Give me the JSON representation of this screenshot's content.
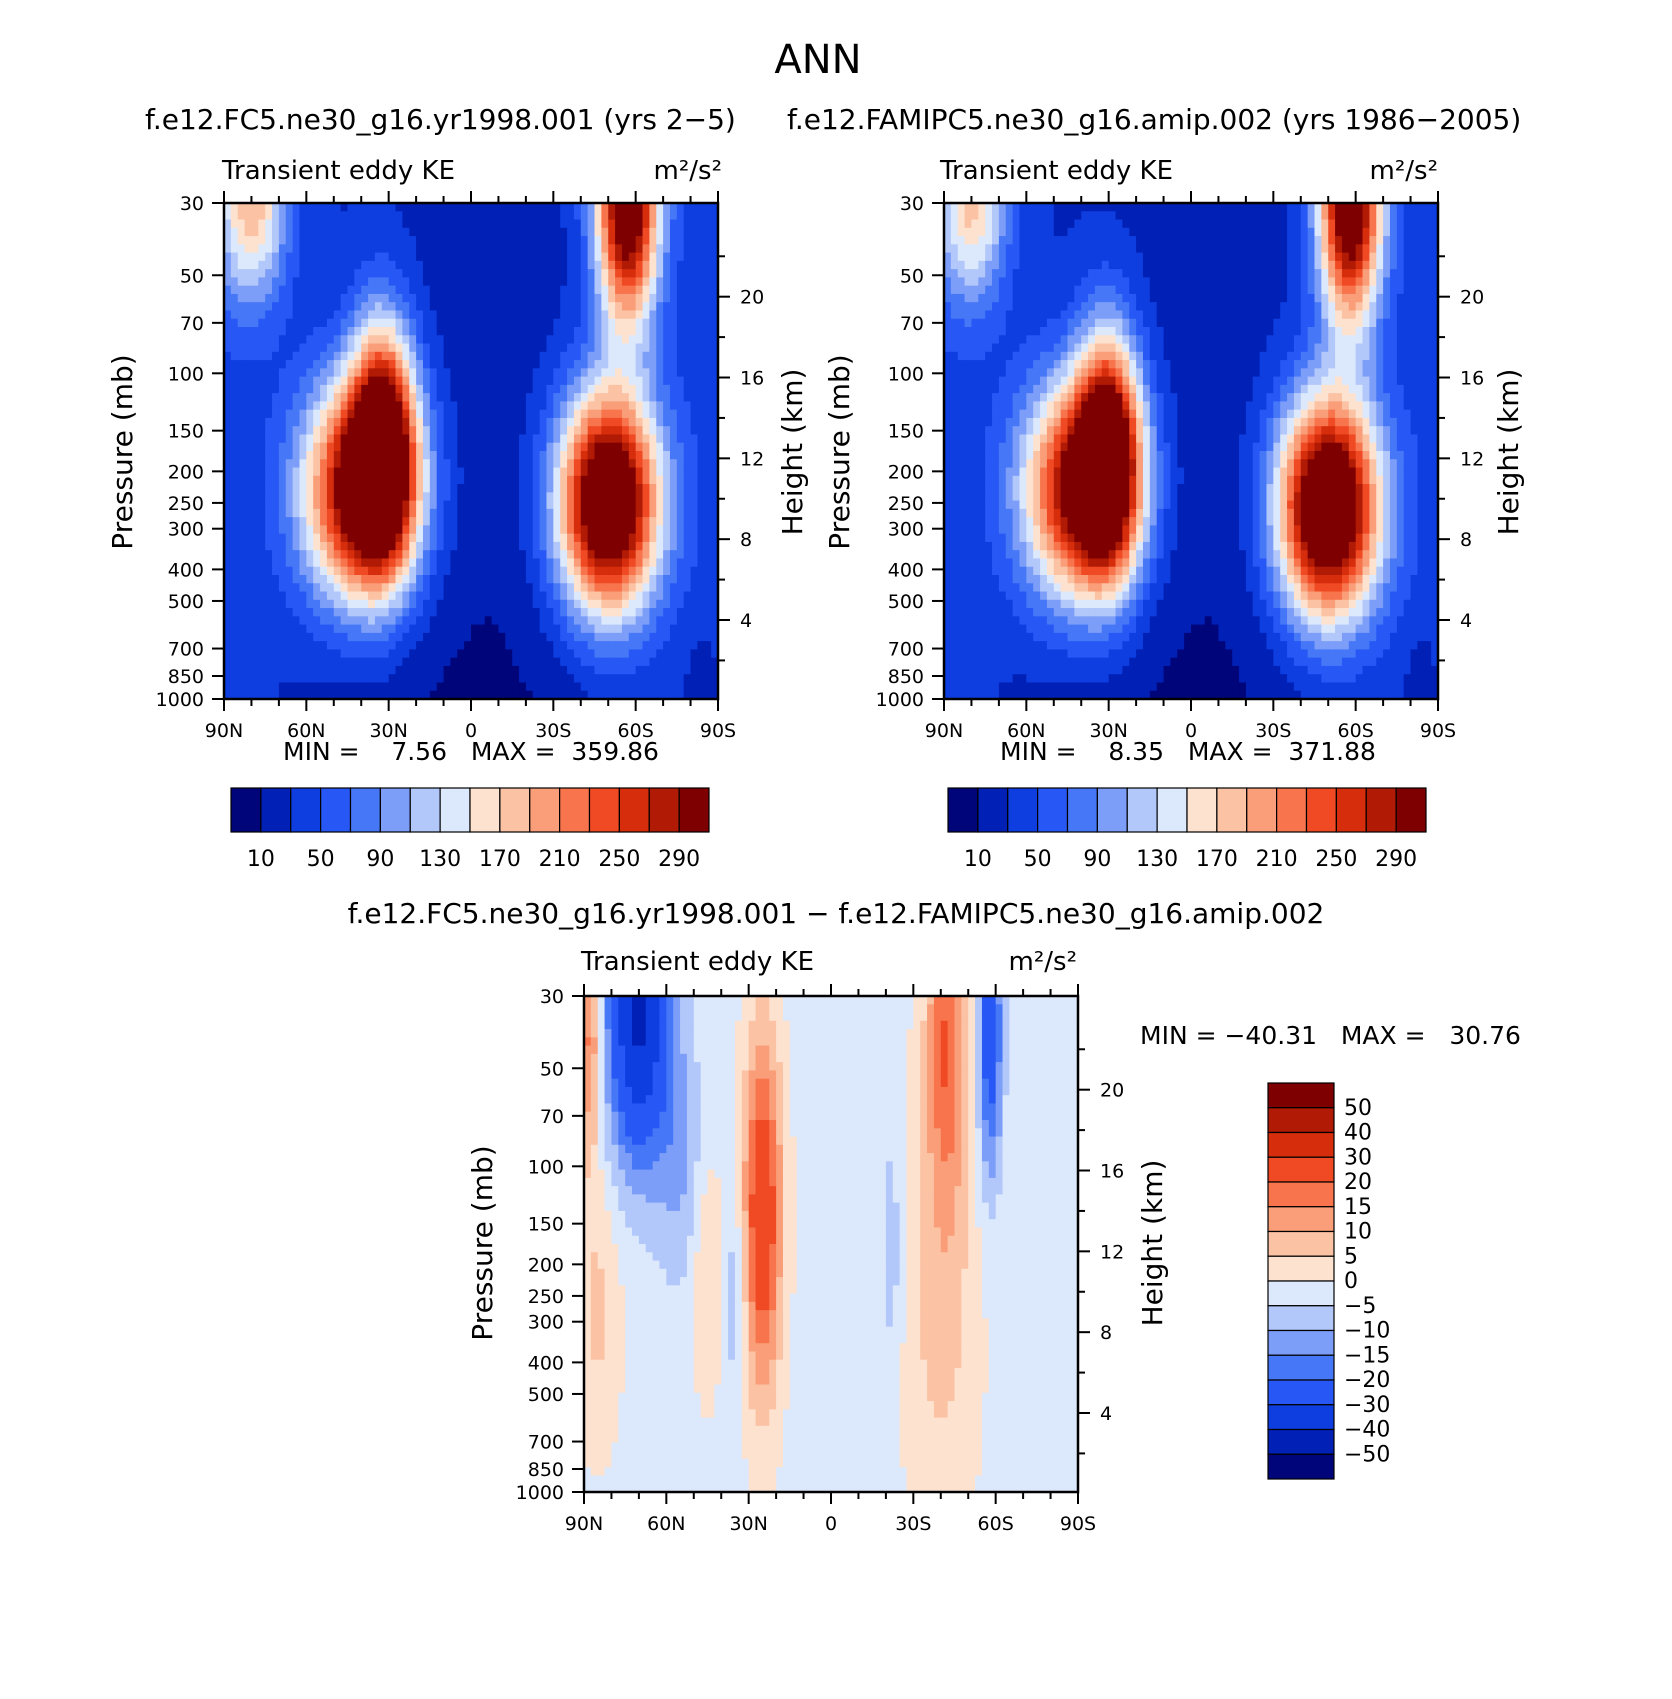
{
  "figure": {
    "title": "ANN",
    "panel_units": "m²/s²",
    "panel_variable": "Transient eddy KE"
  },
  "chart_data": [
    {
      "id": "test",
      "type": "heatmap",
      "title": "f.e12.FC5.ne30_g16.yr1998.001 (yrs 2−5)",
      "left_string": "Transient eddy KE",
      "right_string": "m²/s²",
      "ylabel": "Pressure (mb)",
      "ylabel_right": "Height (km)",
      "x_ticks": [
        "90N",
        "60N",
        "30N",
        "0",
        "30S",
        "60S",
        "90S"
      ],
      "y_ticks": [
        "30",
        "50",
        "70",
        "100",
        "150",
        "200",
        "250",
        "300",
        "400",
        "500",
        "700",
        "850",
        "1000"
      ],
      "y_ticks_right": [
        "20",
        "16",
        "12",
        "8",
        "4"
      ],
      "min": 7.56,
      "max": 359.86,
      "stats_text": "MIN =    7.56   MAX =  359.86",
      "colorbar_labels": [
        "10",
        "50",
        "90",
        "130",
        "170",
        "210",
        "250",
        "290"
      ],
      "colorbar_colors": [
        "#00057a",
        "#0120b6",
        "#0e3ee0",
        "#2758f6",
        "#4677f7",
        "#7d9ef8",
        "#b2c7fa",
        "#dce8fb",
        "#fde2cf",
        "#fbc2a4",
        "#f99e78",
        "#f7744d",
        "#ef4a24",
        "#d62d0c",
        "#b11a05",
        "#7f0000"
      ],
      "field": {
        "background": 40,
        "base_height_range": [
          6,
          40
        ],
        "blobs": [
          {
            "lat": -50,
            "p": 250,
            "peak": 360,
            "wlat": 13,
            "wp": 0.55
          },
          {
            "lat": 40,
            "p": 230,
            "peak": 300,
            "wlat": 15,
            "wp": 0.55
          },
          {
            "lat": 32,
            "p": 160,
            "peak": 250,
            "wlat": 8,
            "wp": 0.6
          },
          {
            "lat": -57,
            "p": 30,
            "peak": 320,
            "wlat": 8,
            "wp": 0.6
          },
          {
            "lat": 80,
            "p": 30,
            "peak": 150,
            "wlat": 9,
            "wp": 0.5
          },
          {
            "lat": -85,
            "p": 900,
            "peak": -15,
            "wlat": 5,
            "wp": 0.3
          }
        ]
      }
    },
    {
      "id": "control",
      "type": "heatmap",
      "title": "f.e12.FAMIPC5.ne30_g16.amip.002 (yrs 1986−2005)",
      "left_string": "Transient eddy KE",
      "right_string": "m²/s²",
      "ylabel": "Pressure (mb)",
      "ylabel_right": "Height (km)",
      "x_ticks": [
        "90N",
        "60N",
        "30N",
        "0",
        "30S",
        "60S",
        "90S"
      ],
      "y_ticks": [
        "30",
        "50",
        "70",
        "100",
        "150",
        "200",
        "250",
        "300",
        "400",
        "500",
        "700",
        "850",
        "1000"
      ],
      "y_ticks_right": [
        "20",
        "16",
        "12",
        "8",
        "4"
      ],
      "min": 8.35,
      "max": 371.88,
      "stats_text": "MIN =    8.35   MAX =  371.88",
      "colorbar_labels": [
        "10",
        "50",
        "90",
        "130",
        "170",
        "210",
        "250",
        "290"
      ],
      "colorbar_colors": [
        "#00057a",
        "#0120b6",
        "#0e3ee0",
        "#2758f6",
        "#4677f7",
        "#7d9ef8",
        "#b2c7fa",
        "#dce8fb",
        "#fde2cf",
        "#fbc2a4",
        "#f99e78",
        "#f7744d",
        "#ef4a24",
        "#d62d0c",
        "#b11a05",
        "#7f0000"
      ],
      "field": {
        "background": 40,
        "base_height_range": [
          6,
          40
        ],
        "blobs": [
          {
            "lat": -50,
            "p": 260,
            "peak": 372,
            "wlat": 13,
            "wp": 0.55
          },
          {
            "lat": 40,
            "p": 230,
            "peak": 290,
            "wlat": 15,
            "wp": 0.55
          },
          {
            "lat": 30,
            "p": 170,
            "peak": 240,
            "wlat": 8,
            "wp": 0.6
          },
          {
            "lat": -58,
            "p": 30,
            "peak": 320,
            "wlat": 8,
            "wp": 0.6
          },
          {
            "lat": 80,
            "p": 30,
            "peak": 140,
            "wlat": 9,
            "wp": 0.5
          },
          {
            "lat": -85,
            "p": 900,
            "peak": -15,
            "wlat": 5,
            "wp": 0.3
          }
        ]
      }
    },
    {
      "id": "difference",
      "type": "heatmap",
      "title": "f.e12.FC5.ne30_g16.yr1998.001 − f.e12.FAMIPC5.ne30_g16.amip.002",
      "left_string": "Transient eddy KE",
      "right_string": "m²/s²",
      "ylabel": "Pressure (mb)",
      "ylabel_right": "Height (km)",
      "x_ticks": [
        "90N",
        "60N",
        "30N",
        "0",
        "30S",
        "60S",
        "90S"
      ],
      "y_ticks": [
        "30",
        "50",
        "70",
        "100",
        "150",
        "200",
        "250",
        "300",
        "400",
        "500",
        "700",
        "850",
        "1000"
      ],
      "y_ticks_right": [
        "20",
        "16",
        "12",
        "8",
        "4"
      ],
      "min": -40.31,
      "max": 30.76,
      "stats_text": "MIN = −40.31   MAX =   30.76",
      "colorbar_labels": [
        "50",
        "40",
        "30",
        "20",
        "15",
        "10",
        "5",
        "0",
        "−5",
        "−10",
        "−15",
        "−20",
        "−30",
        "−40",
        "−50"
      ],
      "colorbar_levels": [
        -50,
        -40,
        -30,
        -20,
        -15,
        -10,
        -5,
        0,
        5,
        10,
        15,
        20,
        30,
        40,
        50
      ],
      "colorbar_colors": [
        "#00057a",
        "#0120b6",
        "#0e3ee0",
        "#2758f6",
        "#4677f7",
        "#7d9ef8",
        "#b2c7fa",
        "#dce8fb",
        "#fde2cf",
        "#fbc2a4",
        "#f99e78",
        "#f7744d",
        "#ef4a24",
        "#d62d0c",
        "#b11a05",
        "#7f0000"
      ],
      "field": {
        "background": -2,
        "blobs": [
          {
            "lat": 70,
            "p": 35,
            "peak": -40,
            "wlat": 8,
            "wp": 0.7
          },
          {
            "lat": 25,
            "p": 140,
            "peak": 30,
            "wlat": 5,
            "wp": 0.9
          },
          {
            "lat": 88,
            "p": 40,
            "peak": 20,
            "wlat": 3,
            "wp": 0.6
          },
          {
            "lat": -42,
            "p": 40,
            "peak": 20,
            "wlat": 5,
            "wp": 0.8
          },
          {
            "lat": -58,
            "p": 40,
            "peak": -25,
            "wlat": 3,
            "wp": 0.7
          },
          {
            "lat": -40,
            "p": 250,
            "peak": 9,
            "wlat": 10,
            "wp": 1.2
          },
          {
            "lat": 85,
            "p": 280,
            "peak": 8,
            "wlat": 6,
            "wp": 0.7
          },
          {
            "lat": 45,
            "p": 220,
            "peak": 8,
            "wlat": 4,
            "wp": 0.6
          },
          {
            "lat": 35,
            "p": 250,
            "peak": -8,
            "wlat": 3,
            "wp": 0.5
          },
          {
            "lat": -22,
            "p": 180,
            "peak": -7,
            "wlat": 3,
            "wp": 0.6
          },
          {
            "lat": 55,
            "p": 100,
            "peak": -8,
            "wlat": 6,
            "wp": 0.6
          }
        ]
      }
    }
  ]
}
